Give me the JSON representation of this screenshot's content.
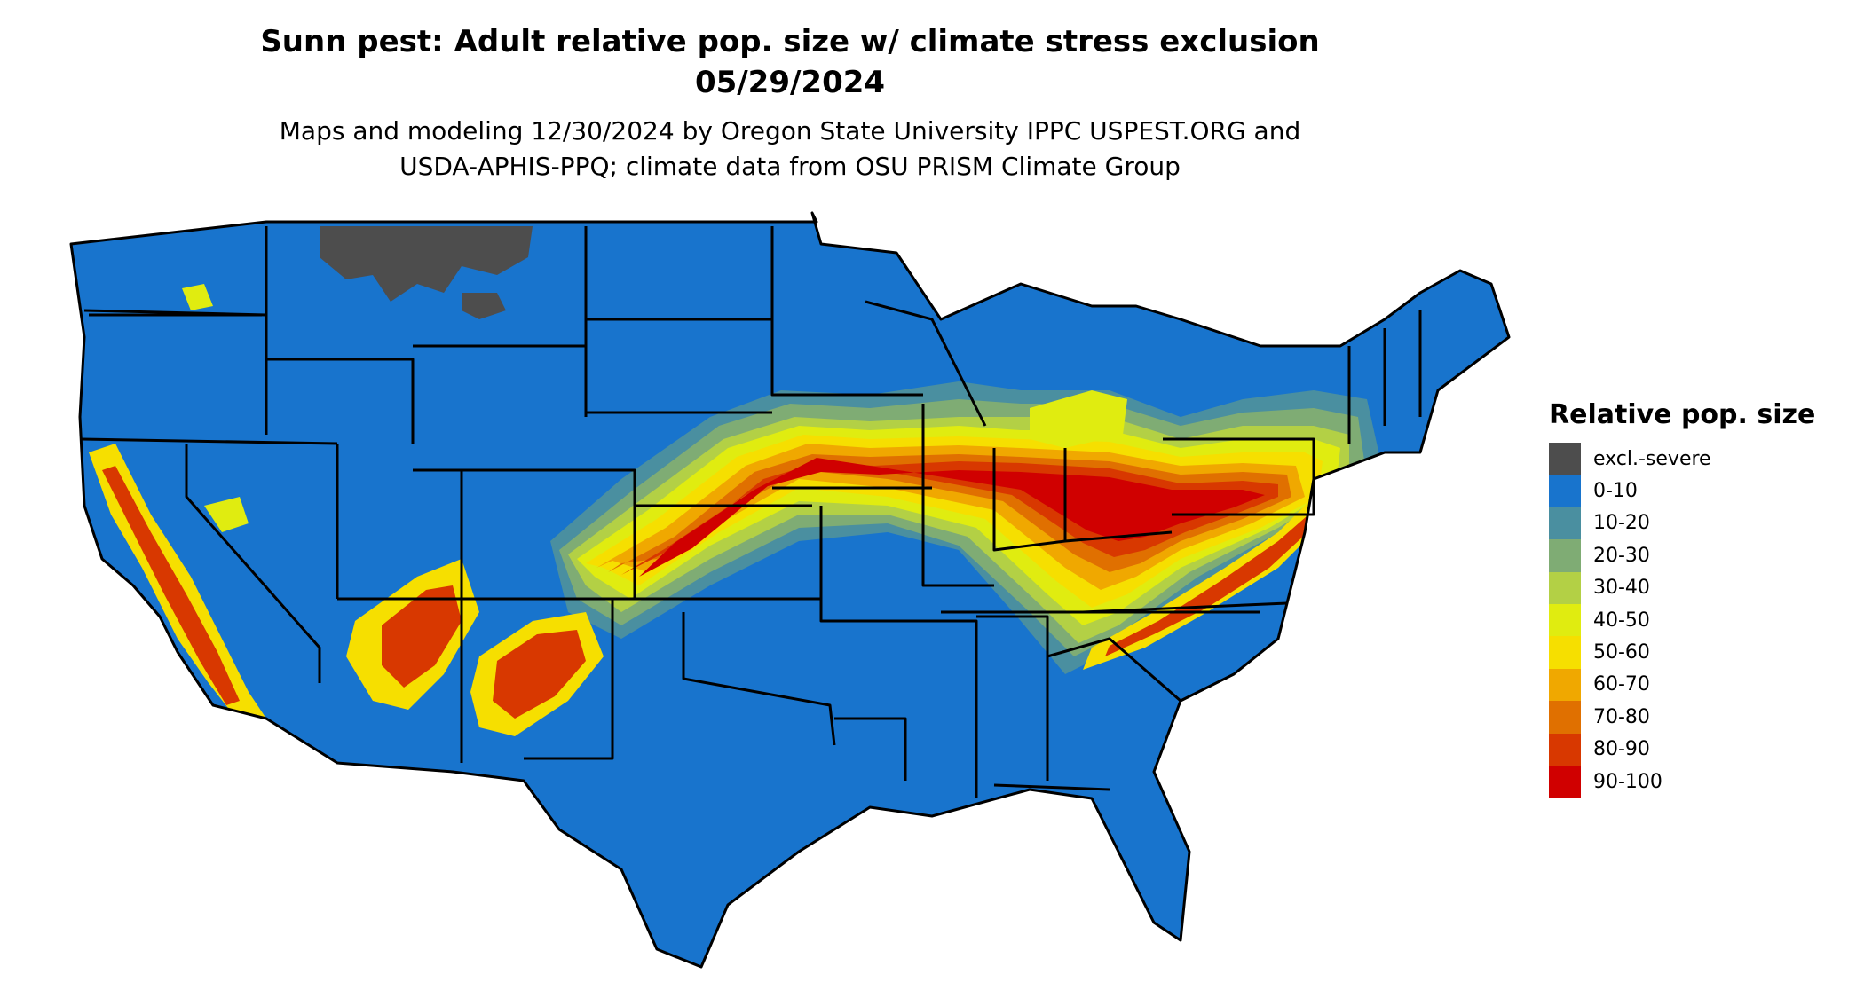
{
  "title_line1": "Sunn pest: Adult relative pop. size w/ climate stress exclusion",
  "title_line2": "05/29/2024",
  "subtitle_line1": "Maps and modeling 12/30/2024 by Oregon State University IPPC USPEST.ORG and",
  "subtitle_line2": "USDA-APHIS-PPQ; climate data from OSU PRISM Climate Group",
  "legend": {
    "title": "Relative pop. size",
    "items": [
      {
        "label": "excl.-severe",
        "color": "#4d4d4d"
      },
      {
        "label": "0-10",
        "color": "#1874cd"
      },
      {
        "label": "10-20",
        "color": "#4a8fa0"
      },
      {
        "label": "20-30",
        "color": "#7fac74"
      },
      {
        "label": "30-40",
        "color": "#b3d045"
      },
      {
        "label": "40-50",
        "color": "#e0ec10"
      },
      {
        "label": "50-60",
        "color": "#f6df00"
      },
      {
        "label": "60-70",
        "color": "#f0a800"
      },
      {
        "label": "70-80",
        "color": "#e07000"
      },
      {
        "label": "80-90",
        "color": "#d83800"
      },
      {
        "label": "90-100",
        "color": "#d00000"
      }
    ]
  }
}
